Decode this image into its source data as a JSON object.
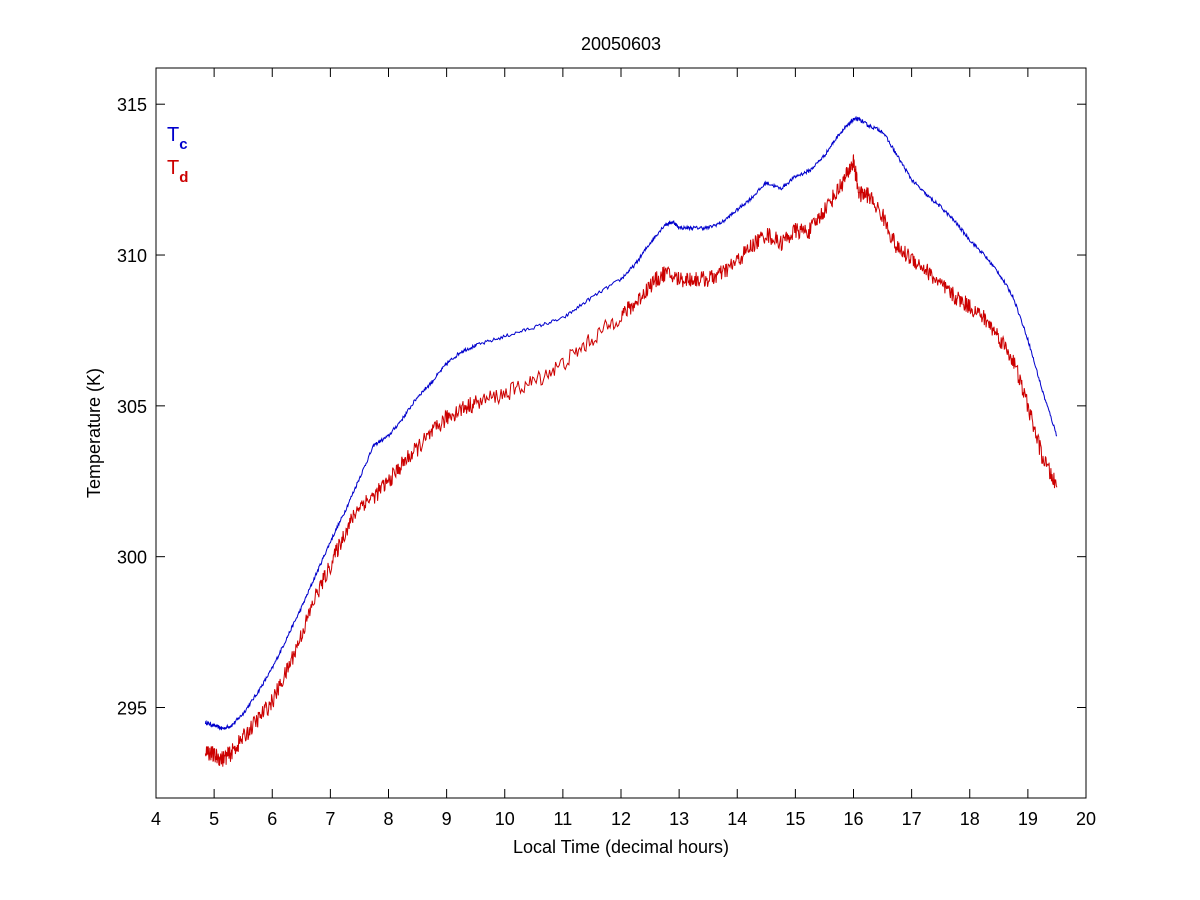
{
  "chart_data": {
    "type": "line",
    "title": "20050603",
    "xlabel": "Local Time (decimal hours)",
    "ylabel": "Temperature (K)",
    "xlim": [
      4,
      20
    ],
    "ylim": [
      292,
      316.2
    ],
    "xticks": [
      4,
      5,
      6,
      7,
      8,
      9,
      10,
      11,
      12,
      13,
      14,
      15,
      16,
      17,
      18,
      19,
      20
    ],
    "yticks": [
      295,
      300,
      305,
      310,
      315
    ],
    "grid": false,
    "legend": {
      "placement": "top-left",
      "entries": [
        {
          "base": "T",
          "sub": "c",
          "color": "#0000cc"
        },
        {
          "base": "T",
          "sub": "d",
          "color": "#cc0000"
        }
      ]
    },
    "series": [
      {
        "color": "#0000cc",
        "points": [
          [
            4.85,
            294.5
          ],
          [
            5.0,
            294.4
          ],
          [
            5.15,
            294.3
          ],
          [
            5.3,
            294.4
          ],
          [
            5.5,
            294.8
          ],
          [
            5.75,
            295.5
          ],
          [
            6.0,
            296.3
          ],
          [
            6.25,
            297.3
          ],
          [
            6.5,
            298.3
          ],
          [
            6.75,
            299.4
          ],
          [
            7.0,
            300.5
          ],
          [
            7.25,
            301.5
          ],
          [
            7.5,
            302.6
          ],
          [
            7.75,
            303.7
          ],
          [
            8.0,
            304.0
          ],
          [
            8.25,
            304.6
          ],
          [
            8.5,
            305.3
          ],
          [
            8.75,
            305.8
          ],
          [
            9.0,
            306.4
          ],
          [
            9.25,
            306.8
          ],
          [
            9.5,
            307.0
          ],
          [
            10.0,
            307.3
          ],
          [
            10.5,
            307.6
          ],
          [
            11.0,
            307.9
          ],
          [
            11.5,
            308.6
          ],
          [
            12.0,
            309.2
          ],
          [
            12.25,
            309.7
          ],
          [
            12.5,
            310.4
          ],
          [
            12.75,
            311.0
          ],
          [
            12.9,
            311.1
          ],
          [
            13.0,
            310.9
          ],
          [
            13.25,
            310.9
          ],
          [
            13.5,
            310.9
          ],
          [
            13.75,
            311.1
          ],
          [
            14.0,
            311.5
          ],
          [
            14.25,
            311.9
          ],
          [
            14.5,
            312.4
          ],
          [
            14.75,
            312.2
          ],
          [
            15.0,
            312.6
          ],
          [
            15.25,
            312.8
          ],
          [
            15.5,
            313.3
          ],
          [
            15.75,
            314.0
          ],
          [
            15.9,
            314.3
          ],
          [
            16.0,
            314.5
          ],
          [
            16.1,
            314.5
          ],
          [
            16.25,
            314.3
          ],
          [
            16.5,
            314.1
          ],
          [
            16.75,
            313.3
          ],
          [
            17.0,
            312.5
          ],
          [
            17.25,
            312.0
          ],
          [
            17.5,
            311.6
          ],
          [
            17.75,
            311.1
          ],
          [
            18.0,
            310.5
          ],
          [
            18.25,
            310.0
          ],
          [
            18.5,
            309.4
          ],
          [
            18.75,
            308.6
          ],
          [
            19.0,
            307.2
          ],
          [
            19.25,
            305.5
          ],
          [
            19.5,
            304.0
          ]
        ]
      },
      {
        "color": "#cc0000",
        "points": [
          [
            4.85,
            293.6
          ],
          [
            5.0,
            293.4
          ],
          [
            5.15,
            293.3
          ],
          [
            5.3,
            293.5
          ],
          [
            5.5,
            294.0
          ],
          [
            5.75,
            294.6
          ],
          [
            6.0,
            295.2
          ],
          [
            6.25,
            296.2
          ],
          [
            6.5,
            297.4
          ],
          [
            6.75,
            298.7
          ],
          [
            7.0,
            299.7
          ],
          [
            7.25,
            300.8
          ],
          [
            7.5,
            301.7
          ],
          [
            7.75,
            302.0
          ],
          [
            8.0,
            302.5
          ],
          [
            8.25,
            303.1
          ],
          [
            8.5,
            303.6
          ],
          [
            8.75,
            304.1
          ],
          [
            9.0,
            304.6
          ],
          [
            9.25,
            304.9
          ],
          [
            9.5,
            305.1
          ],
          [
            10.0,
            305.4
          ],
          [
            10.5,
            305.8
          ],
          [
            11.0,
            306.4
          ],
          [
            11.5,
            307.2
          ],
          [
            12.0,
            308.0
          ],
          [
            12.25,
            308.4
          ],
          [
            12.5,
            309.0
          ],
          [
            12.75,
            309.4
          ],
          [
            13.0,
            309.2
          ],
          [
            13.25,
            309.2
          ],
          [
            13.5,
            309.2
          ],
          [
            13.75,
            309.4
          ],
          [
            14.0,
            309.8
          ],
          [
            14.25,
            310.3
          ],
          [
            14.5,
            310.7
          ],
          [
            14.75,
            310.4
          ],
          [
            15.0,
            310.8
          ],
          [
            15.25,
            310.8
          ],
          [
            15.5,
            311.5
          ],
          [
            15.75,
            312.2
          ],
          [
            15.9,
            312.7
          ],
          [
            16.0,
            313.1
          ],
          [
            16.1,
            312.0
          ],
          [
            16.25,
            312.0
          ],
          [
            16.5,
            311.3
          ],
          [
            16.75,
            310.2
          ],
          [
            17.0,
            309.9
          ],
          [
            17.25,
            309.5
          ],
          [
            17.5,
            309.0
          ],
          [
            17.75,
            308.6
          ],
          [
            18.0,
            308.3
          ],
          [
            18.25,
            307.9
          ],
          [
            18.5,
            307.3
          ],
          [
            18.75,
            306.5
          ],
          [
            19.0,
            305.0
          ],
          [
            19.25,
            303.3
          ],
          [
            19.5,
            302.3
          ]
        ]
      }
    ]
  }
}
